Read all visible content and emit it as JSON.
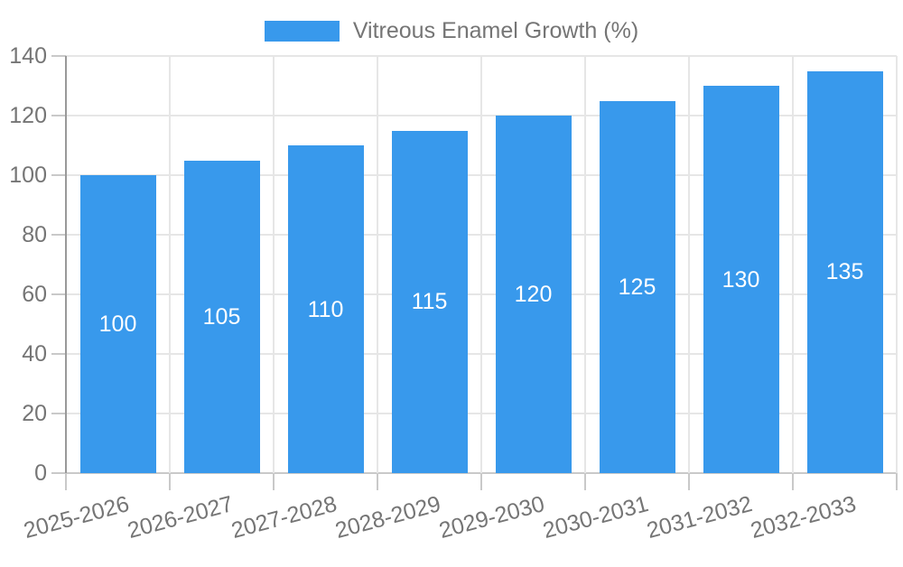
{
  "chart_data": {
    "type": "bar",
    "title": "",
    "legend": {
      "label": "Vitreous Enamel Growth (%)",
      "position": "top-center"
    },
    "categories": [
      "2025-2026",
      "2026-2027",
      "2027-2028",
      "2028-2029",
      "2029-2030",
      "2030-2031",
      "2031-2032",
      "2032-2033"
    ],
    "series": [
      {
        "name": "Vitreous Enamel Growth (%)",
        "values": [
          100,
          105,
          110,
          115,
          120,
          125,
          130,
          135
        ]
      }
    ],
    "values": [
      100,
      105,
      110,
      115,
      120,
      125,
      130,
      135
    ],
    "data_labels_shown": true,
    "data_label_position": "center-of-bar",
    "xlabel": "",
    "ylabel": "",
    "ylim": [
      0,
      140
    ],
    "yticks": [
      0,
      20,
      40,
      60,
      80,
      100,
      120,
      140
    ],
    "x_label_rotation_deg": -15,
    "grid": "both",
    "colors": {
      "bar": "#3899ec",
      "grid": "#e6e6e6",
      "axis": "#999999",
      "tick": "#c9c9c9",
      "text": "#757575",
      "data_label": "#ffffff",
      "background": "#ffffff"
    }
  }
}
